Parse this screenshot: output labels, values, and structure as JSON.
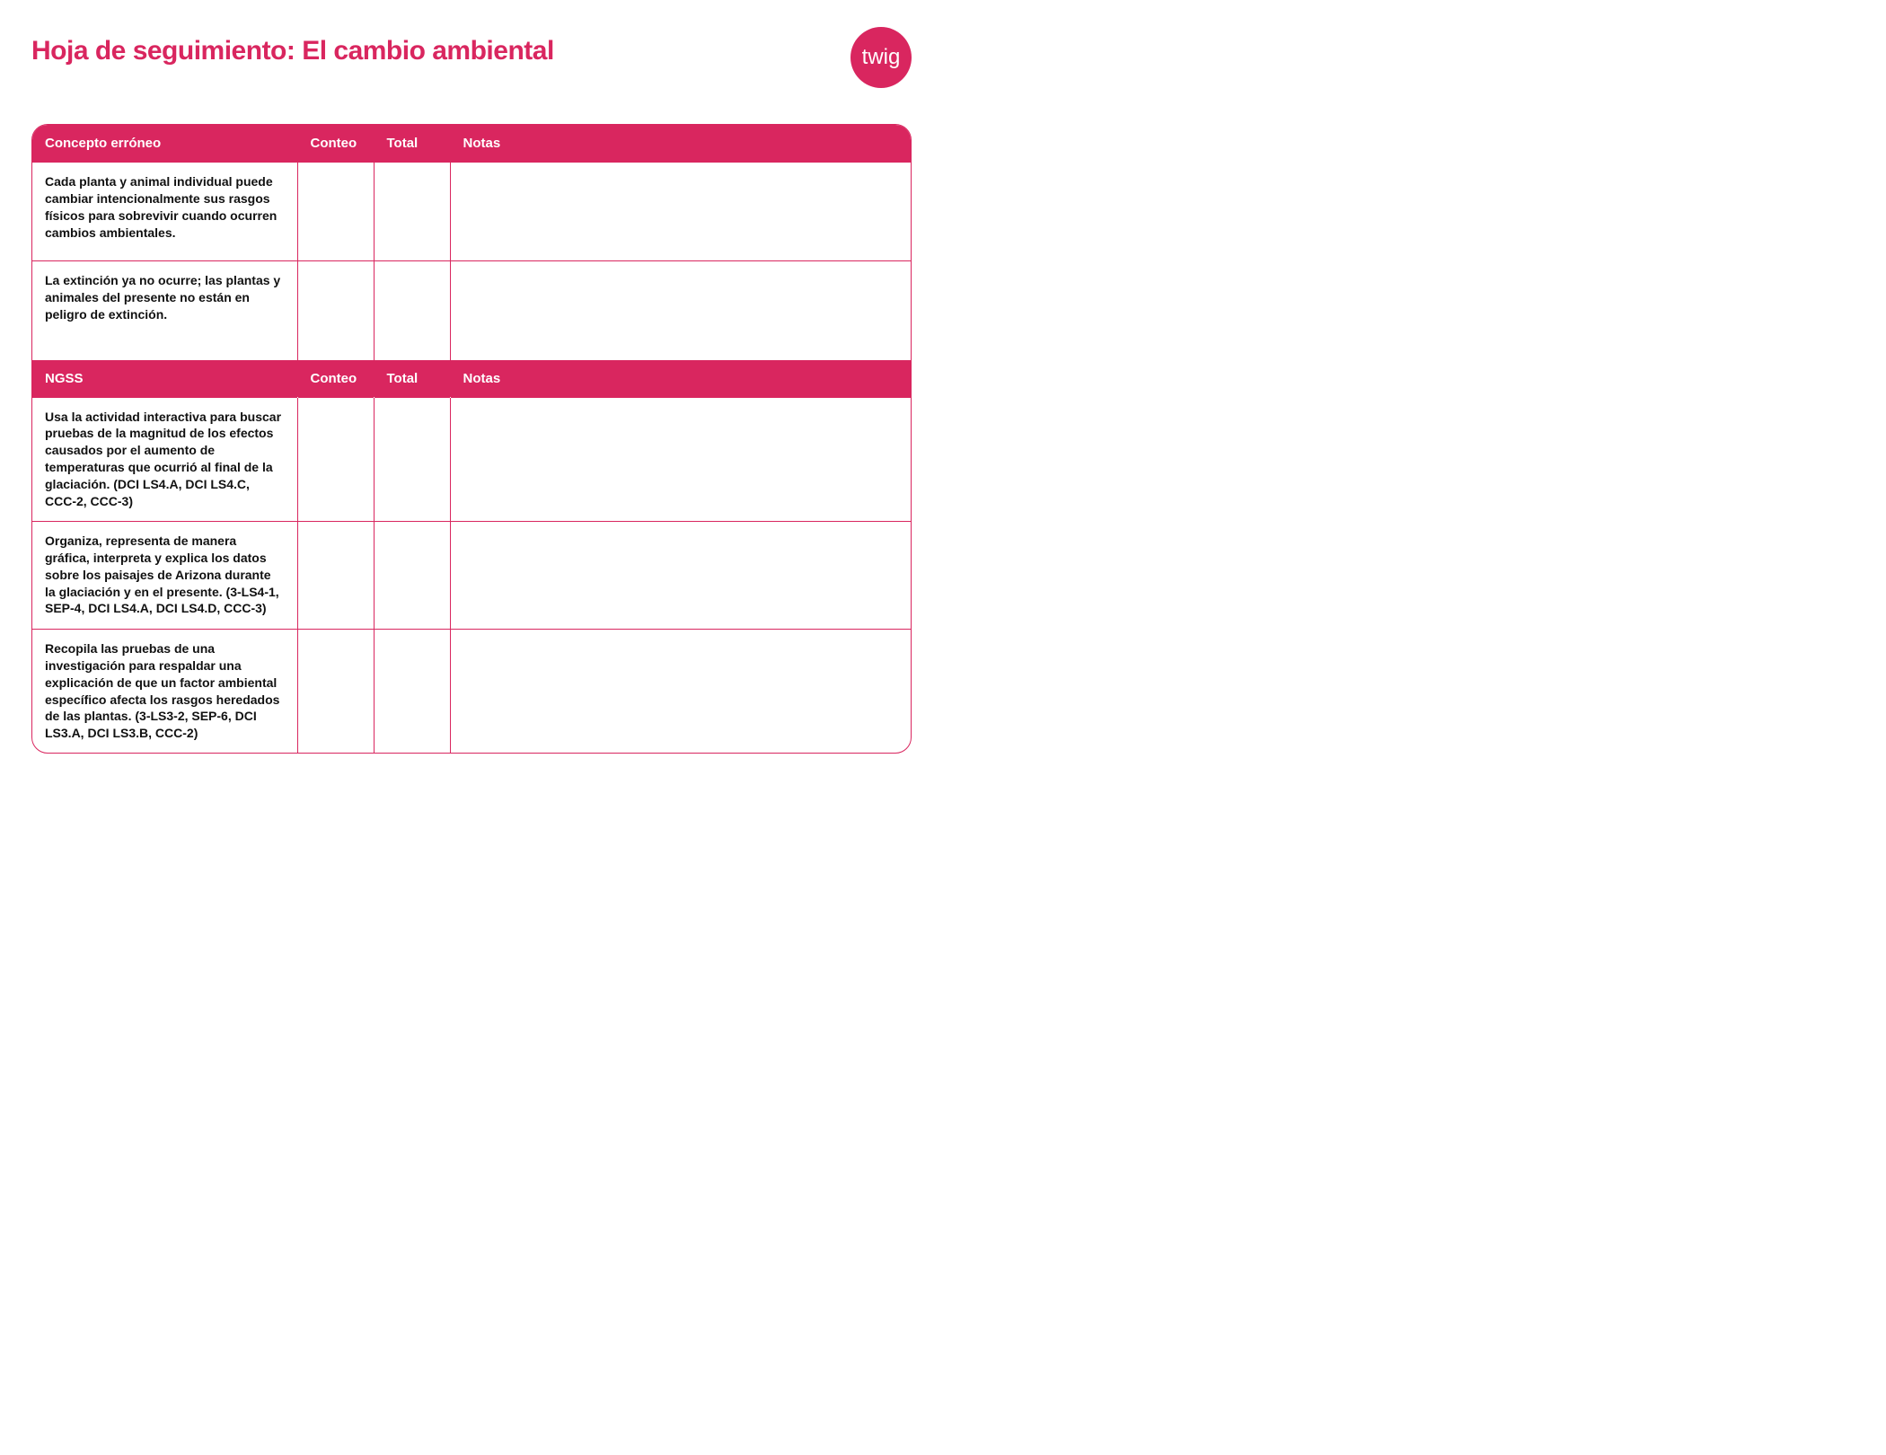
{
  "title": "Hoja de seguimiento: El cambio ambiental",
  "logo_text": "twig",
  "colors": {
    "brand": "#d9265f",
    "text": "#111111",
    "bg": "#ffffff"
  },
  "section1": {
    "headers": {
      "c1": "Concepto erróneo",
      "c2": "Conteo",
      "c3": "Total",
      "c4": "Notas"
    },
    "rows": [
      {
        "concept": "Cada planta y animal individual puede cambiar intencionalmente sus rasgos físicos para sobrevivir cuando ocurren cambios ambientales.",
        "count": "",
        "total": "",
        "notes": ""
      },
      {
        "concept": "La extinción ya no ocurre; las plantas y animales del presente no están en peligro de extinción.",
        "count": "",
        "total": "",
        "notes": ""
      }
    ]
  },
  "section2": {
    "headers": {
      "c1": "NGSS",
      "c2": "Conteo",
      "c3": "Total",
      "c4": "Notas"
    },
    "rows": [
      {
        "concept": "Usa la actividad interactiva para buscar pruebas de la magnitud de los efectos causados por el aumento de temperaturas que ocurrió al final de la glaciación. (DCI LS4.A, DCI LS4.C, CCC-2, CCC-3)",
        "count": "",
        "total": "",
        "notes": ""
      },
      {
        "concept": "Organiza, representa de manera gráfica, interpreta y explica los datos sobre los paisajes de Arizona durante la glaciación y en el presente. (3-LS4-1, SEP-4, DCI LS4.A, DCI LS4.D, CCC-3)",
        "count": "",
        "total": "",
        "notes": ""
      },
      {
        "concept": "Recopila las pruebas de una investigación para respaldar una explicación de que un factor ambiental específico afecta los rasgos heredados de las plantas. (3-LS3-2, SEP-6, DCI LS3.A, DCI LS3.B, CCC-2)",
        "count": "",
        "total": "",
        "notes": ""
      }
    ]
  }
}
